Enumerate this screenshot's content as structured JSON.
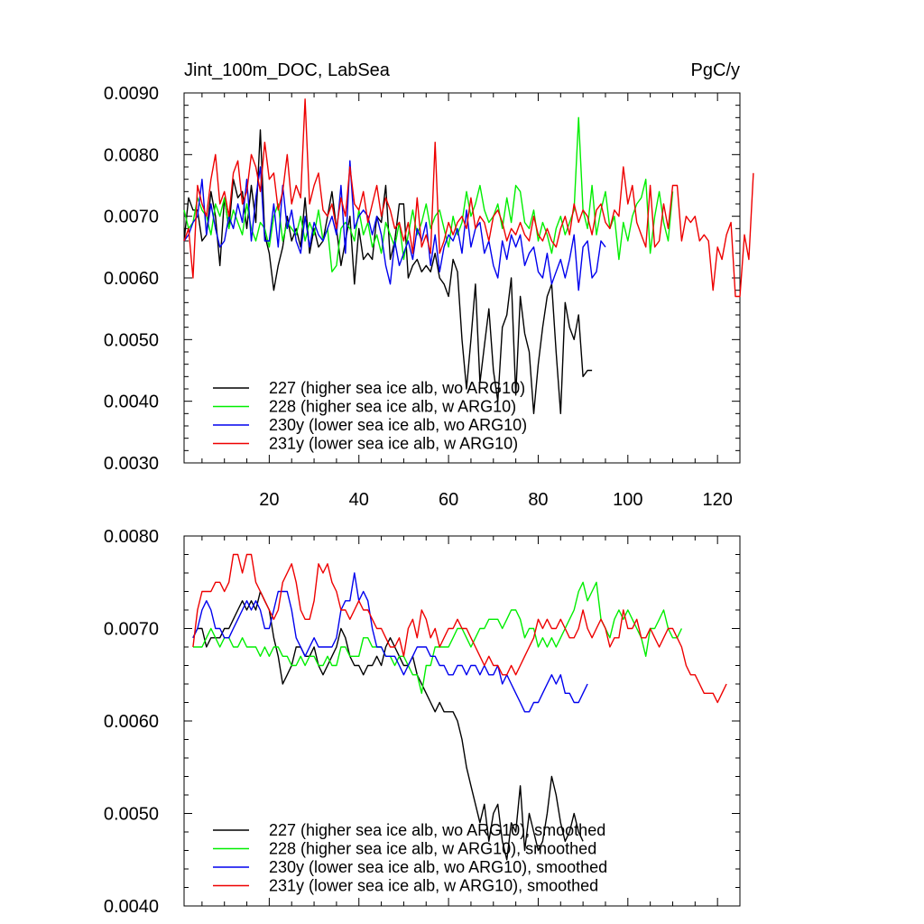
{
  "chart_data": [
    {
      "type": "line",
      "title_left": "Jint_100m_DOC, LabSea",
      "title_right": "PgC/y",
      "xlim": [
        1,
        125
      ],
      "ylim": [
        0.003,
        0.009
      ],
      "xticks": [
        20,
        40,
        60,
        80,
        100,
        120
      ],
      "xtick_labels": [
        "20",
        "40",
        "60",
        "80",
        "100",
        "120"
      ],
      "yticks": [
        0.003,
        0.004,
        0.005,
        0.006,
        0.007,
        0.008,
        0.009
      ],
      "ytick_labels": [
        "0.0030",
        "0.0040",
        "0.0050",
        "0.0060",
        "0.0070",
        "0.0080",
        "0.0090"
      ],
      "legend_position": "bottom-left",
      "series": [
        {
          "name": "227 (higher sea ice alb, wo ARG10)",
          "color": "#000000",
          "x_start": 1,
          "values": [
            0.0066,
            0.0073,
            0.0071,
            0.0071,
            0.0066,
            0.0067,
            0.0074,
            0.007,
            0.0062,
            0.0073,
            0.0068,
            0.0076,
            0.0073,
            0.0074,
            0.0068,
            0.0075,
            0.0069,
            0.0084,
            0.0067,
            0.0064,
            0.0058,
            0.0062,
            0.0065,
            0.007,
            0.0066,
            0.0068,
            0.0065,
            0.0073,
            0.0064,
            0.0068,
            0.0065,
            0.0066,
            0.007,
            0.0074,
            0.0068,
            0.0062,
            0.0066,
            0.007,
            0.0059,
            0.0068,
            0.0063,
            0.0064,
            0.0063,
            0.007,
            0.0069,
            0.0075,
            0.0063,
            0.0066,
            0.0072,
            0.0072,
            0.006,
            0.0062,
            0.0063,
            0.0061,
            0.0062,
            0.0061,
            0.0064,
            0.006,
            0.0059,
            0.0057,
            0.0063,
            0.0061,
            0.005,
            0.0042,
            0.005,
            0.0059,
            0.0043,
            0.0049,
            0.0055,
            0.0045,
            0.004,
            0.0052,
            0.0054,
            0.006,
            0.0041,
            0.0057,
            0.0051,
            0.0048,
            0.0038,
            0.0046,
            0.0052,
            0.0057,
            0.0059,
            0.0048,
            0.0038,
            0.0056,
            0.0052,
            0.005,
            0.0054,
            0.0044,
            0.0045,
            0.0045
          ]
        },
        {
          "name": "228 (higher sea ice alb, w ARG10)",
          "color": "#00ee00",
          "x_start": 1,
          "values": [
            0.0071,
            0.0068,
            0.0069,
            0.0073,
            0.0071,
            0.007,
            0.0067,
            0.0072,
            0.007,
            0.0073,
            0.0068,
            0.0071,
            0.0069,
            0.0067,
            0.0072,
            0.0068,
            0.0066,
            0.0069,
            0.0068,
            0.0065,
            0.007,
            0.0072,
            0.0066,
            0.0069,
            0.0068,
            0.0067,
            0.007,
            0.0066,
            0.0069,
            0.0067,
            0.0071,
            0.0066,
            0.0068,
            0.0061,
            0.0062,
            0.0068,
            0.0069,
            0.0068,
            0.0066,
            0.0071,
            0.0067,
            0.0069,
            0.0065,
            0.0067,
            0.0064,
            0.0069,
            0.0067,
            0.0065,
            0.0069,
            0.0063,
            0.0067,
            0.0071,
            0.0067,
            0.0069,
            0.0072,
            0.0068,
            0.007,
            0.0071,
            0.0068,
            0.0065,
            0.007,
            0.0067,
            0.0069,
            0.0074,
            0.007,
            0.0072,
            0.0075,
            0.0071,
            0.0069,
            0.007,
            0.0072,
            0.0068,
            0.0073,
            0.0069,
            0.0075,
            0.0074,
            0.0069,
            0.0068,
            0.0071,
            0.0066,
            0.0069,
            0.0067,
            0.0064,
            0.0068,
            0.007,
            0.0067,
            0.0069,
            0.0071,
            0.0086,
            0.0071,
            0.0068,
            0.0075,
            0.0067,
            0.0071,
            0.0074,
            0.0068,
            0.007,
            0.0063,
            0.0069,
            0.0066,
            0.007,
            0.0072,
            0.0073,
            0.0076,
            0.0064,
            0.007,
            0.0074,
            0.0069,
            0.0066,
            0.0074
          ]
        },
        {
          "name": "230y (lower sea ice alb, wo ARG10)",
          "color": "#0000ee",
          "x_start": 1,
          "values": [
            0.0066,
            0.0067,
            0.0069,
            0.007,
            0.0076,
            0.0067,
            0.0072,
            0.0068,
            0.0065,
            0.0066,
            0.007,
            0.0068,
            0.0072,
            0.0069,
            0.0076,
            0.0066,
            0.0073,
            0.0078,
            0.0066,
            0.0066,
            0.0072,
            0.0065,
            0.0075,
            0.0068,
            0.0071,
            0.0066,
            0.0064,
            0.007,
            0.0065,
            0.0069,
            0.0067,
            0.0066,
            0.0068,
            0.007,
            0.0067,
            0.0075,
            0.0064,
            0.0079,
            0.0068,
            0.007,
            0.0071,
            0.007,
            0.0067,
            0.007,
            0.0067,
            0.0062,
            0.0059,
            0.0066,
            0.0062,
            0.0064,
            0.0066,
            0.0063,
            0.0068,
            0.0066,
            0.0069,
            0.0062,
            0.0067,
            0.0061,
            0.0065,
            0.0067,
            0.0066,
            0.0068,
            0.0064,
            0.0071,
            0.0065,
            0.0068,
            0.0069,
            0.0064,
            0.0066,
            0.0062,
            0.006,
            0.0066,
            0.0063,
            0.0067,
            0.0065,
            0.0067,
            0.0062,
            0.0064,
            0.0065,
            0.0061,
            0.006,
            0.0064,
            0.0059,
            0.0061,
            0.0063,
            0.006,
            0.0063,
            0.0067,
            0.0058,
            0.0065,
            0.0066,
            0.006,
            0.0061,
            0.0066,
            0.0065
          ]
        },
        {
          "name": "231y (lower sea ice alb, w ARG10)",
          "color": "#ee0000",
          "x_start": 1,
          "values": [
            0.0066,
            0.0068,
            0.006,
            0.0075,
            0.0072,
            0.007,
            0.0076,
            0.008,
            0.0072,
            0.0074,
            0.007,
            0.0077,
            0.0079,
            0.0072,
            0.0074,
            0.008,
            0.0078,
            0.0074,
            0.0082,
            0.0076,
            0.0077,
            0.0071,
            0.0074,
            0.008,
            0.0072,
            0.0075,
            0.0073,
            0.0089,
            0.0072,
            0.0075,
            0.0077,
            0.0071,
            0.007,
            0.0072,
            0.0068,
            0.0073,
            0.007,
            0.0078,
            0.0072,
            0.0071,
            0.0074,
            0.0069,
            0.0072,
            0.0075,
            0.007,
            0.0073,
            0.0071,
            0.0068,
            0.0069,
            0.0066,
            0.0069,
            0.0064,
            0.0073,
            0.0065,
            0.0067,
            0.0064,
            0.0082,
            0.0064,
            0.0066,
            0.0069,
            0.0067,
            0.0069,
            0.007,
            0.0068,
            0.0073,
            0.0068,
            0.007,
            0.0069,
            0.0066,
            0.007,
            0.0071,
            0.0069,
            0.0066,
            0.0068,
            0.0067,
            0.0069,
            0.0067,
            0.0066,
            0.007,
            0.0067,
            0.0066,
            0.0068,
            0.0066,
            0.0065,
            0.0068,
            0.007,
            0.0067,
            0.0072,
            0.0069,
            0.0071,
            0.007,
            0.0067,
            0.0071,
            0.0072,
            0.0069,
            0.0068,
            0.0071,
            0.007,
            0.0078,
            0.0072,
            0.0075,
            0.0069,
            0.0067,
            0.0065,
            0.0075,
            0.0065,
            0.0066,
            0.0072,
            0.0068,
            0.0075,
            0.0075,
            0.0066,
            0.007,
            0.0069,
            0.007,
            0.0066,
            0.0067,
            0.0066,
            0.0058,
            0.0065,
            0.0063,
            0.0067,
            0.0069,
            0.0057,
            0.0057,
            0.0067,
            0.0063,
            0.0077
          ]
        }
      ]
    },
    {
      "type": "line",
      "xlim": [
        1,
        125
      ],
      "ylim": [
        0.004,
        0.008
      ],
      "xticks": [
        20,
        40,
        60,
        80,
        100,
        120
      ],
      "yticks": [
        0.004,
        0.005,
        0.006,
        0.007,
        0.008
      ],
      "ytick_labels": [
        "0.0040",
        "0.0050",
        "0.0060",
        "0.0070",
        "0.0080"
      ],
      "legend_position": "bottom-left",
      "series": [
        {
          "name": "227 (higher sea ice alb, wo ARG10), smoothed",
          "color": "#000000",
          "x_start": 3,
          "values": [
            0.0069,
            0.007,
            0.007,
            0.0068,
            0.0069,
            0.0069,
            0.0069,
            0.007,
            0.007,
            0.0071,
            0.0072,
            0.0073,
            0.0072,
            0.0073,
            0.0072,
            0.0074,
            0.0073,
            0.0072,
            0.0069,
            0.0067,
            0.0064,
            0.0065,
            0.0066,
            0.0068,
            0.0068,
            0.0067,
            0.0067,
            0.0068,
            0.0066,
            0.0065,
            0.0066,
            0.0067,
            0.0068,
            0.007,
            0.0069,
            0.0067,
            0.0066,
            0.0066,
            0.0065,
            0.0066,
            0.0066,
            0.0067,
            0.0066,
            0.0068,
            0.0069,
            0.0068,
            0.0067,
            0.0066,
            0.0066,
            0.0067,
            0.0065,
            0.0064,
            0.0063,
            0.0062,
            0.0061,
            0.0062,
            0.0061,
            0.0061,
            0.0061,
            0.006,
            0.0058,
            0.0055,
            0.0053,
            0.0051,
            0.0049,
            0.0051,
            0.0047,
            0.005,
            0.0051,
            0.0047,
            0.0045,
            0.0049,
            0.0048,
            0.0053,
            0.0046,
            0.005,
            0.0048,
            0.0046,
            0.0047,
            0.005,
            0.0054,
            0.0052,
            0.0049,
            0.0047,
            0.0048,
            0.005,
            0.0048,
            0.0047
          ]
        },
        {
          "name": "228 (higher sea ice alb, w ARG10), smoothed",
          "color": "#00ee00",
          "x_start": 3,
          "values": [
            0.0068,
            0.0068,
            0.0068,
            0.0069,
            0.007,
            0.0069,
            0.0068,
            0.0069,
            0.0069,
            0.0068,
            0.0068,
            0.0069,
            0.0068,
            0.0068,
            0.0068,
            0.0067,
            0.0068,
            0.0067,
            0.0068,
            0.0068,
            0.0067,
            0.0067,
            0.0066,
            0.0066,
            0.0067,
            0.0066,
            0.0067,
            0.0067,
            0.0066,
            0.0066,
            0.0067,
            0.0066,
            0.0066,
            0.0068,
            0.0068,
            0.0067,
            0.0067,
            0.0067,
            0.0069,
            0.0069,
            0.0068,
            0.0068,
            0.0068,
            0.0067,
            0.0067,
            0.0066,
            0.0067,
            0.0067,
            0.0066,
            0.0065,
            0.0065,
            0.0063,
            0.0066,
            0.0066,
            0.0068,
            0.0068,
            0.0068,
            0.0068,
            0.0069,
            0.007,
            0.007,
            0.0069,
            0.0068,
            0.0069,
            0.007,
            0.007,
            0.0071,
            0.0071,
            0.0071,
            0.007,
            0.0071,
            0.0072,
            0.0072,
            0.0071,
            0.0069,
            0.007,
            0.007,
            0.0068,
            0.0069,
            0.0068,
            0.0069,
            0.0068,
            0.0069,
            0.007,
            0.0071,
            0.0072,
            0.0074,
            0.0075,
            0.0073,
            0.0074,
            0.0075,
            0.0071,
            0.007,
            0.0069,
            0.0071,
            0.0072,
            0.0071,
            0.0072,
            0.0071,
            0.007,
            0.0069,
            0.0067,
            0.007,
            0.007,
            0.0071,
            0.0072,
            0.007,
            0.0069,
            0.0069,
            0.007
          ]
        },
        {
          "name": "230y (lower sea ice alb, wo ARG10), smoothed",
          "color": "#0000ee",
          "x_start": 3,
          "values": [
            0.0069,
            0.007,
            0.0072,
            0.0073,
            0.0072,
            0.007,
            0.007,
            0.0069,
            0.0069,
            0.007,
            0.0071,
            0.0072,
            0.0073,
            0.0072,
            0.0073,
            0.0072,
            0.007,
            0.007,
            0.0072,
            0.0074,
            0.0074,
            0.0074,
            0.0072,
            0.0069,
            0.0068,
            0.0067,
            0.0068,
            0.0069,
            0.0068,
            0.0068,
            0.0068,
            0.0068,
            0.0069,
            0.0072,
            0.0073,
            0.0073,
            0.0076,
            0.0073,
            0.0074,
            0.0073,
            0.007,
            0.0068,
            0.0068,
            0.0067,
            0.0067,
            0.0067,
            0.0066,
            0.0065,
            0.0066,
            0.0067,
            0.0068,
            0.0068,
            0.0068,
            0.0067,
            0.0067,
            0.0066,
            0.0066,
            0.0065,
            0.0065,
            0.0066,
            0.0066,
            0.0065,
            0.0066,
            0.0066,
            0.0065,
            0.0066,
            0.0065,
            0.0065,
            0.0066,
            0.0064,
            0.0065,
            0.0064,
            0.0063,
            0.0062,
            0.0061,
            0.0061,
            0.0062,
            0.0062,
            0.0063,
            0.0064,
            0.0065,
            0.0064,
            0.0065,
            0.0063,
            0.0063,
            0.0062,
            0.0062,
            0.0063,
            0.0064
          ]
        },
        {
          "name": "231y (lower sea ice alb, w ARG10), smoothed",
          "color": "#ee0000",
          "x_start": 3,
          "values": [
            0.0068,
            0.0072,
            0.0074,
            0.0074,
            0.0074,
            0.0075,
            0.0075,
            0.0074,
            0.0075,
            0.0078,
            0.0078,
            0.0076,
            0.0078,
            0.0078,
            0.0075,
            0.0074,
            0.0073,
            0.0072,
            0.0071,
            0.0072,
            0.0075,
            0.0076,
            0.0077,
            0.0075,
            0.0072,
            0.0071,
            0.0071,
            0.0073,
            0.0077,
            0.0076,
            0.0077,
            0.0075,
            0.0074,
            0.0072,
            0.0072,
            0.0071,
            0.0072,
            0.0073,
            0.0072,
            0.0072,
            0.0071,
            0.007,
            0.007,
            0.0069,
            0.0068,
            0.0068,
            0.0069,
            0.0067,
            0.007,
            0.0071,
            0.0069,
            0.0072,
            0.0071,
            0.0069,
            0.007,
            0.0068,
            0.0069,
            0.007,
            0.007,
            0.0071,
            0.007,
            0.007,
            0.0069,
            0.0068,
            0.0067,
            0.0066,
            0.0067,
            0.0066,
            0.0066,
            0.0065,
            0.0065,
            0.0066,
            0.0065,
            0.0066,
            0.0067,
            0.0068,
            0.0069,
            0.0071,
            0.007,
            0.0071,
            0.007,
            0.007,
            0.0071,
            0.007,
            0.0069,
            0.0069,
            0.007,
            0.0072,
            0.007,
            0.0069,
            0.007,
            0.0071,
            0.007,
            0.0068,
            0.0069,
            0.0069,
            0.0072,
            0.007,
            0.007,
            0.0071,
            0.0069,
            0.0069,
            0.007,
            0.0069,
            0.0068,
            0.0069,
            0.007,
            0.007,
            0.0069,
            0.0068,
            0.0066,
            0.0065,
            0.0065,
            0.0064,
            0.0063,
            0.0063,
            0.0063,
            0.0062,
            0.0063,
            0.0064
          ]
        }
      ]
    }
  ]
}
